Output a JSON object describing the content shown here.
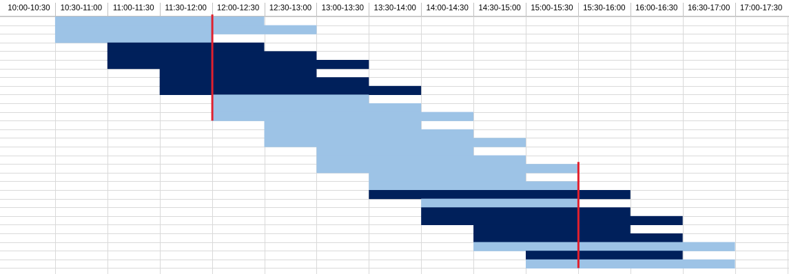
{
  "colors": {
    "light_block": "#9DC3E6",
    "dark_block": "#00205B",
    "marker": "#E0202E",
    "gridline": "#D9D9D9",
    "header_border": "#BFBFBF"
  },
  "chart_data": {
    "type": "gantt",
    "title": "",
    "categories": [
      "10:00-10:30",
      "10:30-11:00",
      "11:00-11:30",
      "11:30-12:00",
      "12:00-12:30",
      "12:30-13:00",
      "13:00-13:30",
      "13:30-14:00",
      "14:00-14:30",
      "14:30-15:00",
      "15:00-15:30",
      "15:30-16:00",
      "16:00-16:30",
      "16:30-17:00",
      "17:00-17:30"
    ],
    "row_count": 29,
    "grid": true,
    "bars": [
      {
        "row": 0,
        "start": 1,
        "end": 5,
        "shade": "light"
      },
      {
        "row": 1,
        "start": 1,
        "end": 6,
        "shade": "light"
      },
      {
        "row": 2,
        "start": 1,
        "end": 4,
        "shade": "light"
      },
      {
        "row": 3,
        "start": 2,
        "end": 5,
        "shade": "dark"
      },
      {
        "row": 4,
        "start": 2,
        "end": 6,
        "shade": "dark"
      },
      {
        "row": 5,
        "start": 2,
        "end": 7,
        "shade": "dark"
      },
      {
        "row": 6,
        "start": 3,
        "end": 6,
        "shade": "dark"
      },
      {
        "row": 7,
        "start": 3,
        "end": 7,
        "shade": "dark"
      },
      {
        "row": 8,
        "start": 3,
        "end": 8,
        "shade": "dark"
      },
      {
        "row": 9,
        "start": 4,
        "end": 7,
        "shade": "light"
      },
      {
        "row": 10,
        "start": 4,
        "end": 8,
        "shade": "light"
      },
      {
        "row": 11,
        "start": 4,
        "end": 9,
        "shade": "light"
      },
      {
        "row": 12,
        "start": 5,
        "end": 8,
        "shade": "light"
      },
      {
        "row": 13,
        "start": 5,
        "end": 9,
        "shade": "light"
      },
      {
        "row": 14,
        "start": 5,
        "end": 10,
        "shade": "light"
      },
      {
        "row": 15,
        "start": 6,
        "end": 9,
        "shade": "light"
      },
      {
        "row": 16,
        "start": 6,
        "end": 10,
        "shade": "light"
      },
      {
        "row": 17,
        "start": 6,
        "end": 11,
        "shade": "light"
      },
      {
        "row": 18,
        "start": 7,
        "end": 10,
        "shade": "light"
      },
      {
        "row": 19,
        "start": 7,
        "end": 11,
        "shade": "light"
      },
      {
        "row": 20,
        "start": 7,
        "end": 12,
        "shade": "dark"
      },
      {
        "row": 21,
        "start": 8,
        "end": 11,
        "shade": "light"
      },
      {
        "row": 22,
        "start": 8,
        "end": 12,
        "shade": "dark"
      },
      {
        "row": 23,
        "start": 8,
        "end": 13,
        "shade": "dark"
      },
      {
        "row": 24,
        "start": 9,
        "end": 12,
        "shade": "dark"
      },
      {
        "row": 25,
        "start": 9,
        "end": 13,
        "shade": "dark"
      },
      {
        "row": 26,
        "start": 9,
        "end": 14,
        "shade": "light"
      },
      {
        "row": 27,
        "start": 10,
        "end": 13,
        "shade": "dark"
      },
      {
        "row": 28,
        "start": 10,
        "end": 14,
        "shade": "light"
      }
    ],
    "markers": [
      {
        "time": "12:00",
        "column": 4,
        "from_row": 0,
        "to_row": 11
      },
      {
        "time": "15:30",
        "column": 11,
        "from_row": 17,
        "to_row": 28
      }
    ]
  }
}
